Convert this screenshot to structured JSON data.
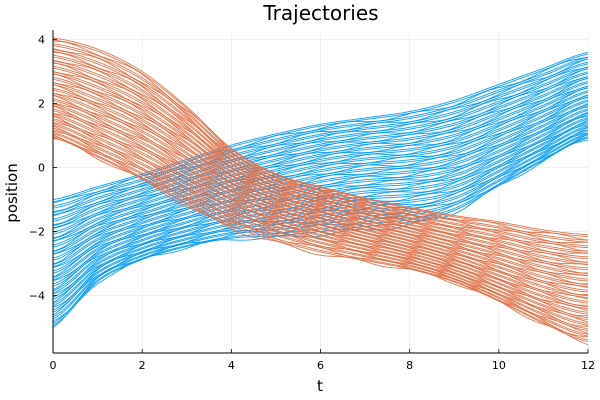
{
  "chart_data": {
    "type": "line",
    "title": "Trajectories",
    "xlabel": "t",
    "ylabel": "position",
    "xlim": [
      0,
      12
    ],
    "ylim": [
      -5.8,
      4.3
    ],
    "xticks": [
      0,
      2,
      4,
      6,
      8,
      10,
      12
    ],
    "yticks": [
      -4,
      -2,
      0,
      2,
      4
    ],
    "grid": true,
    "legend": "none",
    "series_groups": [
      {
        "color": "#009AFA",
        "trajectory_count": 60,
        "t": [
          0,
          1,
          2,
          3,
          4,
          5,
          6,
          7,
          8,
          9,
          10,
          11,
          12
        ],
        "top_edge": [
          -1.0,
          -0.6,
          -0.2,
          0.25,
          0.7,
          1.05,
          1.35,
          1.55,
          1.75,
          2.1,
          2.6,
          3.1,
          3.6
        ],
        "bottom_edge": [
          -5.0,
          -3.6,
          -2.9,
          -2.5,
          -2.25,
          -2.2,
          -2.1,
          -1.95,
          -1.8,
          -1.4,
          -0.6,
          0.2,
          0.9
        ]
      },
      {
        "color": "#E26F46",
        "trajectory_count": 60,
        "t": [
          0,
          1,
          2,
          3,
          4,
          5,
          6,
          7,
          8,
          9,
          10,
          11,
          12
        ],
        "top_edge": [
          4.05,
          3.7,
          3.0,
          1.9,
          0.6,
          -0.2,
          -0.6,
          -0.95,
          -1.25,
          -1.5,
          -1.7,
          -1.95,
          -2.1
        ],
        "bottom_edge": [
          0.9,
          0.3,
          -0.4,
          -1.2,
          -1.9,
          -2.35,
          -2.7,
          -2.95,
          -3.2,
          -3.6,
          -4.2,
          -4.9,
          -5.5
        ]
      }
    ]
  }
}
